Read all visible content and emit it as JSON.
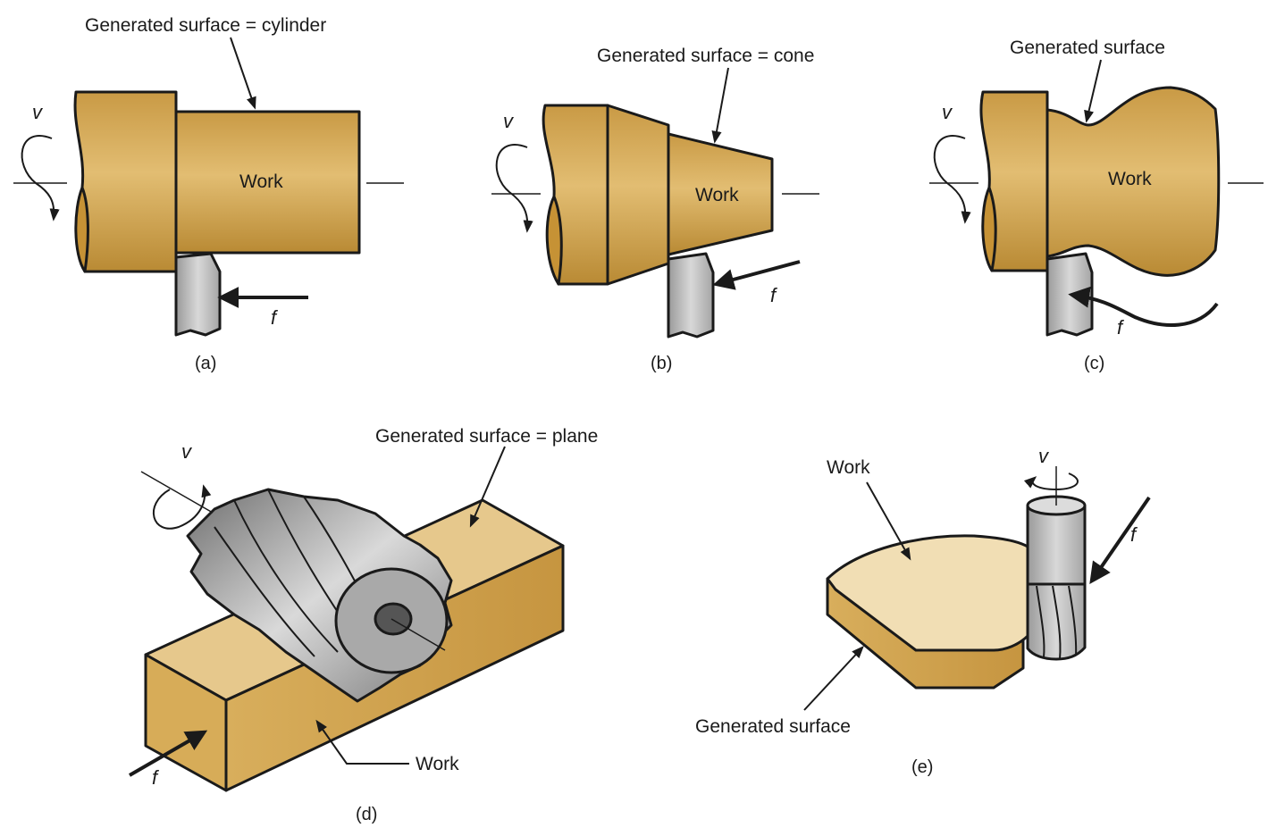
{
  "labels": {
    "a_surface": "Generated surface = cylinder",
    "a_work": "Work",
    "a_v": "v",
    "a_f": "f",
    "a_caption": "(a)",
    "b_surface": "Generated surface = cone",
    "b_work": "Work",
    "b_v": "v",
    "b_f": "f",
    "b_caption": "(b)",
    "c_surface": "Generated surface",
    "c_work": "Work",
    "c_v": "v",
    "c_f": "f",
    "c_caption": "(c)",
    "d_surface": "Generated surface = plane",
    "d_work": "Work",
    "d_v": "v",
    "d_f": "f",
    "d_caption": "(d)",
    "e_work": "Work",
    "e_surface": "Generated surface",
    "e_v": "v",
    "e_f": "f",
    "e_caption": "(e)"
  },
  "colors": {
    "work": "#d6aa55",
    "work_dark": "#b88932",
    "work_light": "#f0ddb0",
    "tool": "#c8c8c8",
    "tool_dark": "#8c8c8c"
  }
}
